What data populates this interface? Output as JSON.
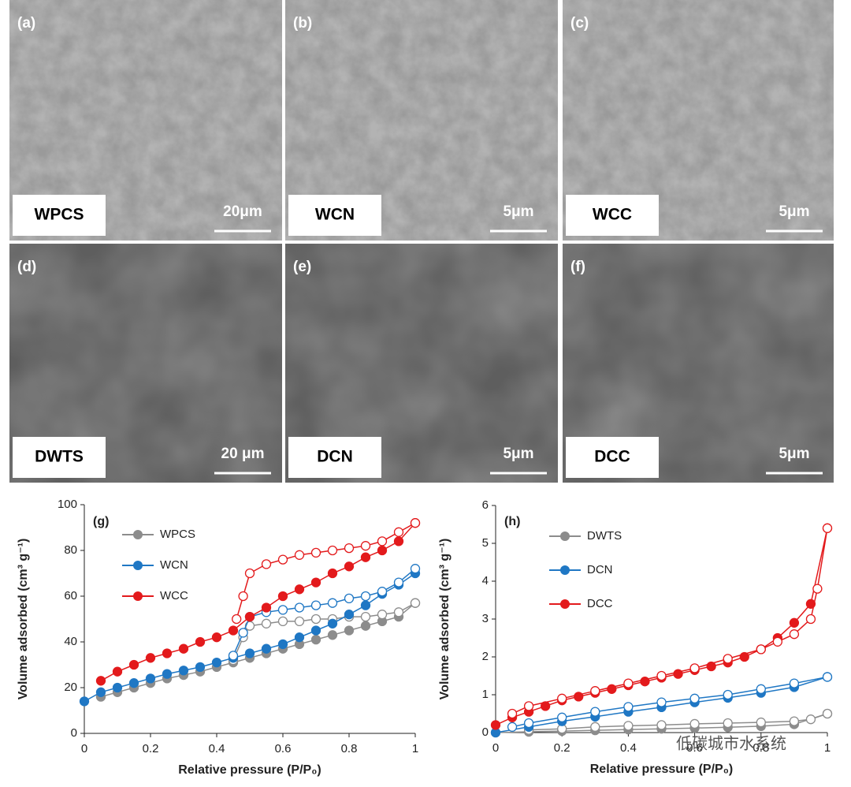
{
  "panels": [
    {
      "label": "(a)",
      "sample": "WPCS",
      "scale_bar": "20μm"
    },
    {
      "label": "(b)",
      "sample": "WCN",
      "scale_bar": "5μm"
    },
    {
      "label": "(c)",
      "sample": "WCC",
      "scale_bar": "5μm"
    },
    {
      "label": "(d)",
      "sample": "DWTS",
      "scale_bar": "20 μm"
    },
    {
      "label": "(e)",
      "sample": "DCN",
      "scale_bar": "5μm"
    },
    {
      "label": "(f)",
      "sample": "DCC",
      "scale_bar": "5μm"
    }
  ],
  "watermark": "低碳城市水系统",
  "chart_data": [
    {
      "type": "line",
      "panel_label": "(g)",
      "xlabel": "Relative pressure (P/P₀)",
      "ylabel": "Volume adsorbed (cm³ g⁻¹)",
      "xlim": [
        0,
        1
      ],
      "ylim": [
        0,
        100
      ],
      "xticks": [
        0,
        0.2,
        0.4,
        0.6,
        0.8,
        1
      ],
      "yticks": [
        0,
        20,
        40,
        60,
        80,
        100
      ],
      "series": [
        {
          "name": "WPCS",
          "color": "#8c8c8c",
          "x": [
            0.05,
            0.1,
            0.15,
            0.2,
            0.25,
            0.3,
            0.35,
            0.4,
            0.45,
            0.5,
            0.55,
            0.6,
            0.65,
            0.7,
            0.75,
            0.8,
            0.85,
            0.9,
            0.95,
            1.0
          ],
          "values": [
            16,
            18,
            20,
            22,
            24,
            25.5,
            27,
            29,
            31,
            33,
            35,
            37,
            39,
            41,
            43,
            45,
            47,
            49,
            51,
            57
          ],
          "desorption_x": [
            1.0,
            0.95,
            0.9,
            0.85,
            0.8,
            0.75,
            0.7,
            0.65,
            0.6,
            0.55,
            0.5,
            0.48,
            0.45
          ],
          "desorption_values": [
            57,
            53,
            52,
            51,
            51,
            50,
            50,
            49,
            49,
            48,
            47,
            42,
            32
          ]
        },
        {
          "name": "WCN",
          "color": "#1f77c4",
          "x": [
            0,
            0.05,
            0.1,
            0.15,
            0.2,
            0.25,
            0.3,
            0.35,
            0.4,
            0.45,
            0.5,
            0.55,
            0.6,
            0.65,
            0.7,
            0.75,
            0.8,
            0.85,
            0.9,
            0.95,
            1.0
          ],
          "values": [
            14,
            18,
            20,
            22,
            24,
            26,
            27.5,
            29,
            31,
            33,
            35,
            37,
            39,
            42,
            45,
            48,
            52,
            56,
            61,
            65,
            70
          ],
          "desorption_x": [
            1.0,
            0.95,
            0.9,
            0.85,
            0.8,
            0.75,
            0.7,
            0.65,
            0.6,
            0.55,
            0.5,
            0.48,
            0.45
          ],
          "desorption_values": [
            72,
            66,
            62,
            60,
            59,
            57,
            56,
            55,
            54,
            53,
            51,
            44,
            34
          ]
        },
        {
          "name": "WCC",
          "color": "#e31a1c",
          "x": [
            0.05,
            0.1,
            0.15,
            0.2,
            0.25,
            0.3,
            0.35,
            0.4,
            0.45,
            0.5,
            0.55,
            0.6,
            0.65,
            0.7,
            0.75,
            0.8,
            0.85,
            0.9,
            0.95,
            1.0
          ],
          "values": [
            23,
            27,
            30,
            33,
            35,
            37,
            40,
            42,
            45,
            51,
            55,
            60,
            63,
            66,
            70,
            73,
            77,
            80,
            84,
            92
          ],
          "desorption_x": [
            1.0,
            0.95,
            0.9,
            0.85,
            0.8,
            0.75,
            0.7,
            0.65,
            0.6,
            0.55,
            0.5,
            0.48,
            0.46
          ],
          "desorption_values": [
            92,
            88,
            84,
            82,
            81,
            80,
            79,
            78,
            76,
            74,
            70,
            60,
            50
          ]
        }
      ]
    },
    {
      "type": "line",
      "panel_label": "(h)",
      "xlabel": "Relative pressure (P/P₀)",
      "ylabel": "Volume adsorbed (cm³ g⁻¹)",
      "xlim": [
        0,
        1
      ],
      "ylim": [
        0,
        6
      ],
      "xticks": [
        0,
        0.2,
        0.4,
        0.6,
        0.8,
        1
      ],
      "yticks": [
        0,
        1,
        2,
        3,
        4,
        5,
        6
      ],
      "series": [
        {
          "name": "DWTS",
          "color": "#8c8c8c",
          "x": [
            0,
            0.1,
            0.2,
            0.3,
            0.4,
            0.5,
            0.6,
            0.7,
            0.8,
            0.9,
            1.0
          ],
          "values": [
            0,
            0.02,
            0.04,
            0.06,
            0.08,
            0.1,
            0.12,
            0.14,
            0.17,
            0.22,
            0.5
          ],
          "desorption_x": [
            1.0,
            0.95,
            0.9,
            0.8,
            0.7,
            0.6,
            0.5,
            0.4,
            0.3,
            0.2,
            0.1
          ],
          "desorption_values": [
            0.5,
            0.35,
            0.3,
            0.27,
            0.25,
            0.23,
            0.2,
            0.18,
            0.15,
            0.1,
            0.07
          ]
        },
        {
          "name": "DCN",
          "color": "#1f77c4",
          "x": [
            0,
            0.1,
            0.2,
            0.3,
            0.4,
            0.5,
            0.6,
            0.7,
            0.8,
            0.9,
            1.0
          ],
          "values": [
            0,
            0.15,
            0.3,
            0.42,
            0.55,
            0.67,
            0.8,
            0.92,
            1.05,
            1.2,
            1.47
          ],
          "desorption_x": [
            1.0,
            0.9,
            0.8,
            0.7,
            0.6,
            0.5,
            0.4,
            0.3,
            0.2,
            0.1,
            0.05
          ],
          "desorption_values": [
            1.47,
            1.3,
            1.15,
            1.0,
            0.9,
            0.8,
            0.68,
            0.55,
            0.4,
            0.25,
            0.15
          ]
        },
        {
          "name": "DCC",
          "color": "#e31a1c",
          "x": [
            0,
            0.05,
            0.1,
            0.15,
            0.2,
            0.25,
            0.3,
            0.35,
            0.4,
            0.45,
            0.5,
            0.55,
            0.6,
            0.65,
            0.7,
            0.75,
            0.8,
            0.85,
            0.9,
            0.95,
            1.0
          ],
          "values": [
            0.2,
            0.4,
            0.55,
            0.7,
            0.85,
            0.95,
            1.05,
            1.15,
            1.25,
            1.35,
            1.45,
            1.55,
            1.65,
            1.75,
            1.85,
            2.0,
            2.2,
            2.5,
            2.9,
            3.4,
            5.4
          ],
          "desorption_x": [
            1.0,
            0.97,
            0.95,
            0.9,
            0.85,
            0.8,
            0.7,
            0.6,
            0.5,
            0.4,
            0.3,
            0.2,
            0.1,
            0.05
          ],
          "desorption_values": [
            5.4,
            3.8,
            3.0,
            2.6,
            2.4,
            2.2,
            1.95,
            1.7,
            1.5,
            1.3,
            1.1,
            0.9,
            0.7,
            0.5
          ]
        }
      ]
    }
  ]
}
